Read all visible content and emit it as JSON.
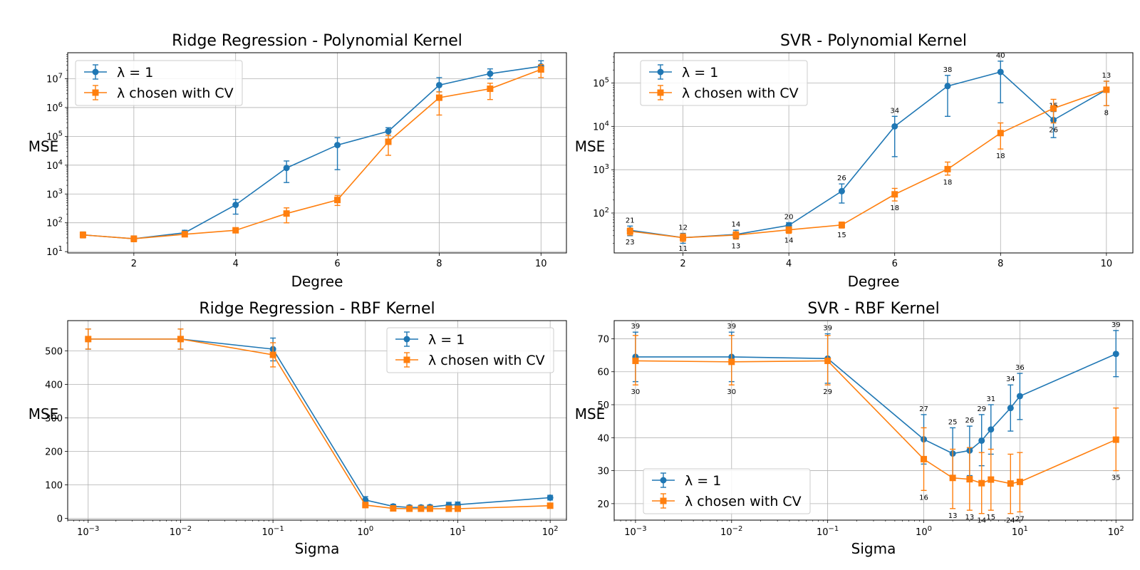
{
  "chart_data": [
    {
      "type": "line",
      "title": "Ridge Regression - Polynomial Kernel",
      "xlabel": "Degree",
      "ylabel": "MSE",
      "xscale": "linear",
      "yscale": "log",
      "xlim": [
        0.7,
        10.5
      ],
      "ylim": [
        9,
        80000000
      ],
      "x_ticks": [
        2,
        4,
        6,
        8,
        10
      ],
      "y_ticks": [
        10,
        100,
        1000,
        10000,
        100000,
        1000000,
        10000000
      ],
      "grid": true,
      "legend_position": "upper left",
      "x": [
        1,
        2,
        3,
        4,
        5,
        6,
        7,
        8,
        9,
        10
      ],
      "series": [
        {
          "name": "λ = 1",
          "color": "#1f77b4",
          "marker": "circle",
          "values": [
            38,
            28,
            45,
            420,
            8000,
            50000,
            150000,
            6000000,
            15000000,
            27000000
          ],
          "err_low": [
            30,
            22,
            38,
            200,
            2500,
            7000,
            110000,
            3500000,
            10000000,
            18000000
          ],
          "err_high": [
            48,
            35,
            55,
            650,
            14000,
            90000,
            200000,
            11000000,
            22000000,
            42000000
          ]
        },
        {
          "name": "λ chosen with CV",
          "color": "#ff7f0e",
          "marker": "square",
          "values": [
            38,
            28,
            40,
            55,
            210,
            620,
            65000,
            2200000,
            4500000,
            21000000
          ],
          "err_low": [
            30,
            22,
            33,
            45,
            100,
            400,
            22000,
            550000,
            1900000,
            11000000
          ],
          "err_high": [
            48,
            35,
            50,
            65,
            330,
            880,
            110000,
            3500000,
            7000000,
            31000000
          ]
        }
      ]
    },
    {
      "type": "line",
      "title": "SVR - Polynomial Kernel",
      "xlabel": "Degree",
      "ylabel": "MSE",
      "xscale": "linear",
      "yscale": "log",
      "xlim": [
        0.7,
        10.5
      ],
      "ylim": [
        12,
        500000
      ],
      "x_ticks": [
        2,
        4,
        6,
        8,
        10
      ],
      "y_ticks": [
        100,
        1000,
        10000,
        100000
      ],
      "grid": true,
      "legend_position": "upper left",
      "x": [
        1,
        2,
        3,
        4,
        5,
        6,
        7,
        8,
        9,
        10
      ],
      "series": [
        {
          "name": "λ = 1",
          "color": "#1f77b4",
          "marker": "circle",
          "values": [
            40,
            27,
            32,
            52,
            320,
            10000,
            85000,
            180000,
            14000,
            70000
          ],
          "err_low": [
            30,
            20,
            26,
            45,
            170,
            2000,
            17000,
            35000,
            5500,
            30000
          ],
          "err_high": [
            50,
            34,
            40,
            60,
            470,
            17000,
            150000,
            320000,
            22000,
            110000
          ],
          "point_labels": [
            "21",
            "12",
            "14",
            "20",
            "26",
            "34",
            "38",
            "40",
            "15",
            "13"
          ]
        },
        {
          "name": "λ chosen with CV",
          "color": "#ff7f0e",
          "marker": "square",
          "values": [
            38,
            27,
            31,
            41,
            53,
            270,
            1030,
            7000,
            26000,
            70000
          ],
          "err_low": [
            31,
            22,
            25,
            34,
            45,
            190,
            750,
            3000,
            12000,
            30000
          ],
          "err_high": [
            45,
            33,
            37,
            48,
            62,
            370,
            1500,
            12000,
            42000,
            110000
          ],
          "point_labels": [
            "23",
            "11",
            "13",
            "14",
            "15",
            "18",
            "18",
            "18",
            "26",
            "8"
          ]
        }
      ]
    },
    {
      "type": "line",
      "title": "Ridge Regression - RBF Kernel",
      "xlabel": "Sigma",
      "ylabel": "MSE",
      "xscale": "log",
      "yscale": "linear",
      "xlim": [
        0.0006,
        150
      ],
      "ylim": [
        -5,
        590
      ],
      "x_ticks": [
        0.001,
        0.01,
        0.1,
        1,
        10,
        100
      ],
      "x_tick_labels": [
        "10−3",
        "10−2",
        "10−1",
        "100",
        "101",
        "102"
      ],
      "y_ticks": [
        0,
        100,
        200,
        300,
        400,
        500
      ],
      "grid": true,
      "legend_position": "upper right",
      "x": [
        0.001,
        0.01,
        0.1,
        1,
        2,
        3,
        4,
        5,
        8,
        10,
        100
      ],
      "series": [
        {
          "name": "λ = 1",
          "color": "#1f77b4",
          "marker": "circle",
          "values": [
            535,
            535,
            505,
            55,
            36,
            33,
            33,
            34,
            40,
            41,
            62
          ],
          "err_low": [
            505,
            505,
            470,
            45,
            30,
            27,
            27,
            28,
            32,
            33,
            55
          ],
          "err_high": [
            565,
            565,
            538,
            65,
            42,
            39,
            39,
            40,
            48,
            49,
            69
          ]
        },
        {
          "name": "λ chosen with CV",
          "color": "#ff7f0e",
          "marker": "square",
          "values": [
            535,
            535,
            488,
            40,
            30,
            29,
            29,
            29,
            29,
            29,
            38
          ],
          "err_low": [
            505,
            505,
            452,
            32,
            24,
            23,
            23,
            23,
            23,
            23,
            31
          ],
          "err_high": [
            565,
            565,
            524,
            48,
            36,
            35,
            35,
            35,
            35,
            35,
            45
          ]
        }
      ]
    },
    {
      "type": "line",
      "title": "SVR - RBF Kernel",
      "xlabel": "Sigma",
      "ylabel": "MSE",
      "xscale": "log",
      "yscale": "linear",
      "xlim": [
        0.0006,
        150
      ],
      "ylim": [
        15,
        75.5
      ],
      "x_ticks": [
        0.001,
        0.01,
        0.1,
        1,
        10,
        100
      ],
      "x_tick_labels": [
        "10−3",
        "10−2",
        "10−1",
        "100",
        "101",
        "102"
      ],
      "y_ticks": [
        20,
        30,
        40,
        50,
        60,
        70
      ],
      "grid": true,
      "legend_position": "lower left",
      "x": [
        0.001,
        0.01,
        0.1,
        1,
        2,
        3,
        4,
        5,
        8,
        10,
        100
      ],
      "series": [
        {
          "name": "λ = 1",
          "color": "#1f77b4",
          "marker": "circle",
          "values": [
            64.5,
            64.5,
            64.0,
            39.5,
            35.2,
            36.1,
            39.1,
            42.5,
            49.0,
            52.6,
            65.4
          ],
          "err_low": [
            57.0,
            57.0,
            56.5,
            32.0,
            27.5,
            28.5,
            31.5,
            35.0,
            42.0,
            45.5,
            58.5
          ],
          "err_high": [
            72.0,
            72.0,
            71.5,
            47.0,
            43.0,
            43.5,
            47.0,
            50.0,
            56.0,
            59.5,
            72.5
          ],
          "point_labels": [
            "39",
            "39",
            "39",
            "27",
            "25",
            "26",
            "29",
            "31",
            "34",
            "36",
            "39"
          ]
        },
        {
          "name": "λ chosen with CV",
          "color": "#ff7f0e",
          "marker": "square",
          "values": [
            63.3,
            63.0,
            63.3,
            33.5,
            27.8,
            27.4,
            26.2,
            27.3,
            26.1,
            26.6,
            39.4
          ],
          "err_low": [
            56.0,
            56.0,
            56.0,
            24.0,
            18.5,
            18.0,
            17.0,
            18.0,
            17.0,
            17.5,
            30.0
          ],
          "err_high": [
            71.0,
            71.0,
            71.0,
            43.0,
            36.5,
            37.0,
            35.5,
            36.5,
            35.0,
            35.5,
            49.0
          ],
          "point_labels": [
            "30",
            "30",
            "29",
            "16",
            "13",
            "13",
            "14",
            "15",
            "24",
            "27",
            "35"
          ]
        }
      ]
    }
  ]
}
